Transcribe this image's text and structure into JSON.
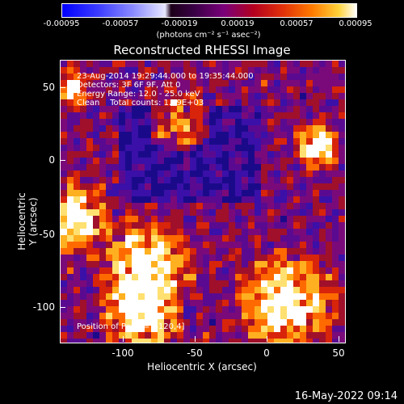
{
  "colorbar": {
    "ticks": [
      "-0.00095",
      "-0.00057",
      "-0.00019",
      "0.00019",
      "0.00057",
      "0.00095"
    ],
    "units": "(photons cm⁻² s⁻¹ asec⁻²)"
  },
  "title": "Reconstructed RHESSI Image",
  "annotation": {
    "line1": "23-Aug-2014 19:29:44.000 to 19:35:44.000",
    "line2": "Detectors: 3F 6F 9F, Att 0",
    "line3": "Energy Range: 12.0 - 25.0 keV",
    "line4": "Clean    Total counts: 1.09E+03",
    "peak": "Position of Peak = [-120,4]"
  },
  "axes": {
    "xlabel": "Heliocentric X (arcsec)",
    "ylabel": "Heliocentric Y (arcsec)",
    "xticks": [
      "-100",
      "-50",
      "0",
      "50"
    ],
    "yticks": [
      "50",
      "0",
      "-50",
      "-100"
    ]
  },
  "timestamp": "16-May-2022 09:14"
}
